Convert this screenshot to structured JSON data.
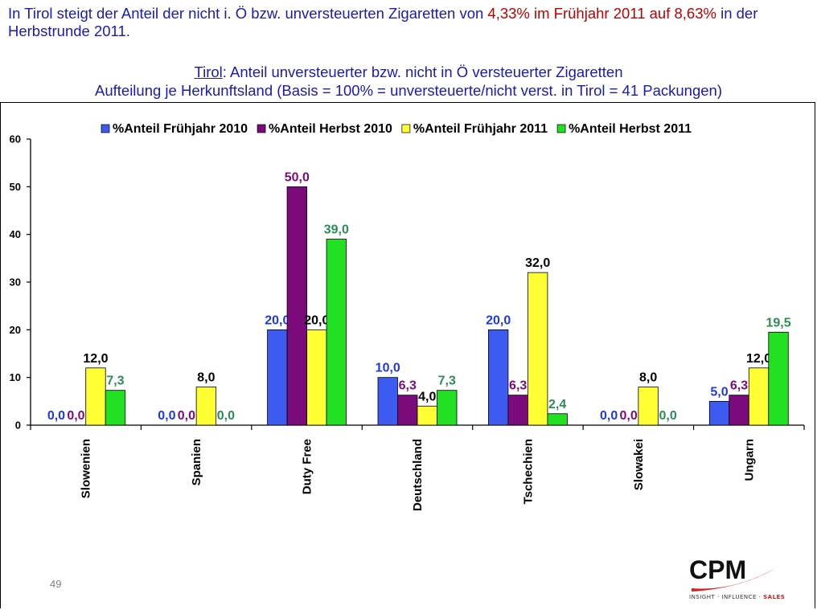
{
  "headline": {
    "part1": "In Tirol steigt  der Anteil der nicht i. Ö bzw. unversteuerten Zigaretten von ",
    "part2": "4,33% im Frühjahr 2011 auf 8,63%",
    "part3": " in der Herbstrunde 2011."
  },
  "subtitle": {
    "underlined": "Tirol",
    "line1_rest": ": Anteil unversteuerter bzw. nicht in Ö versteuerter Zigaretten",
    "line2": "Aufteilung je Herkunftsland (Basis = 100% = unversteuerte/nicht verst. in Tirol = 41 Packungen)"
  },
  "page_number": "49",
  "logo": {
    "name": "CPM",
    "tagline_prefix": "INSIGHT · INFLUENCE · ",
    "tagline_sales": "SALES"
  },
  "chart_data": {
    "type": "bar",
    "categories": [
      "Slowenien",
      "Spanien",
      "Duty Free",
      "Deutschland",
      "Tschechien",
      "Slowakei",
      "Ungarn"
    ],
    "series": [
      {
        "name": "%Anteil Frühjahr 2010",
        "color": "#3d5af1",
        "label_color": "#1f3ad8",
        "values": [
          0.0,
          0.0,
          20.0,
          10.0,
          20.0,
          0.0,
          5.0
        ],
        "labels": [
          "0,0",
          "0,0",
          "20,0",
          "10,0",
          "20,0",
          "0,0",
          "5,0"
        ]
      },
      {
        "name": "%Anteil Herbst 2010",
        "color": "#7b0a7b",
        "label_color": "#7b0a7b",
        "values": [
          0.0,
          0.0,
          50.0,
          6.3,
          6.3,
          0.0,
          6.3
        ],
        "labels": [
          "0,0",
          "0,0",
          "50,0",
          "6,3",
          "6,3",
          "0,0",
          "6,3"
        ]
      },
      {
        "name": "%Anteil Frühjahr 2011",
        "color": "#ffff33",
        "label_color": "#000000",
        "values": [
          12.0,
          8.0,
          20.0,
          4.0,
          32.0,
          8.0,
          12.0
        ],
        "labels": [
          "12,0",
          "8,0",
          "20,0",
          "4,0",
          "32,0",
          "8,0",
          "12,0"
        ]
      },
      {
        "name": "%Anteil Herbst 2011",
        "color": "#22e022",
        "label_color": "#2e8b57",
        "values": [
          7.3,
          0.0,
          39.0,
          7.3,
          2.4,
          0.0,
          19.5
        ],
        "labels": [
          "7,3",
          "0,0",
          "39,0",
          "7,3",
          "2,4",
          "0,0",
          "19,5"
        ]
      }
    ],
    "yticks": [
      "0",
      "10",
      "20",
      "30",
      "40",
      "50",
      "60"
    ],
    "ylim": [
      0,
      60
    ],
    "grid": false,
    "legend_position": "top"
  }
}
